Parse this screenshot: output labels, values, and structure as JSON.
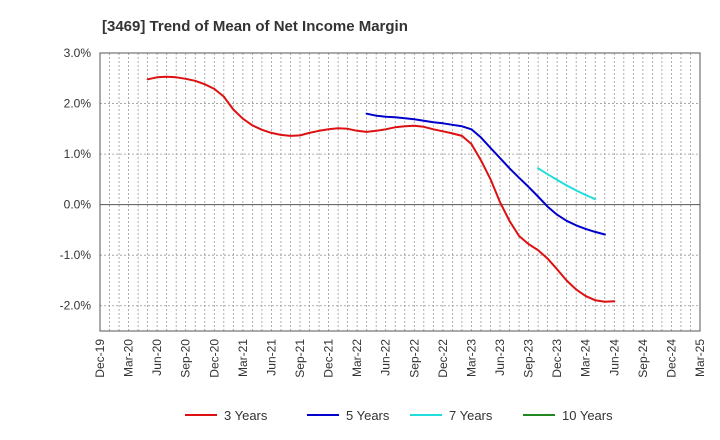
{
  "chart_data": {
    "type": "line",
    "title": "[3469]  Trend of Mean of Net Income Margin",
    "xlabel": "",
    "ylabel": "",
    "x_ticks": [
      "Dec-19",
      "Mar-20",
      "Jun-20",
      "Sep-20",
      "Dec-20",
      "Mar-21",
      "Jun-21",
      "Sep-21",
      "Dec-21",
      "Mar-22",
      "Jun-22",
      "Sep-22",
      "Dec-22",
      "Mar-23",
      "Jun-23",
      "Sep-23",
      "Dec-23",
      "Mar-24",
      "Jun-24",
      "Sep-24",
      "Dec-24",
      "Mar-25"
    ],
    "y_ticks": [
      "3.0%",
      "2.0%",
      "1.0%",
      "0.0%",
      "-1.0%",
      "-2.0%"
    ],
    "y_tick_values": [
      3.0,
      2.0,
      1.0,
      0.0,
      -1.0,
      -2.0
    ],
    "ylim": [
      -2.5,
      3.0
    ],
    "xlim": [
      0,
      21
    ],
    "grid": true,
    "legend_position": "bottom",
    "series": [
      {
        "name": "3 Years",
        "color": "#dd1111",
        "points": [
          [
            1.67,
            2.48
          ],
          [
            2.0,
            2.52
          ],
          [
            2.33,
            2.53
          ],
          [
            2.67,
            2.52
          ],
          [
            3.0,
            2.49
          ],
          [
            3.33,
            2.45
          ],
          [
            3.67,
            2.38
          ],
          [
            4.0,
            2.29
          ],
          [
            4.33,
            2.14
          ],
          [
            4.67,
            1.88
          ],
          [
            5.0,
            1.7
          ],
          [
            5.33,
            1.57
          ],
          [
            5.67,
            1.48
          ],
          [
            6.0,
            1.42
          ],
          [
            6.33,
            1.38
          ],
          [
            6.67,
            1.36
          ],
          [
            7.0,
            1.37
          ],
          [
            7.33,
            1.42
          ],
          [
            7.67,
            1.46
          ],
          [
            8.0,
            1.49
          ],
          [
            8.33,
            1.51
          ],
          [
            8.67,
            1.5
          ],
          [
            9.0,
            1.46
          ],
          [
            9.33,
            1.44
          ],
          [
            9.67,
            1.46
          ],
          [
            10.0,
            1.49
          ],
          [
            10.33,
            1.53
          ],
          [
            10.67,
            1.55
          ],
          [
            11.0,
            1.56
          ],
          [
            11.33,
            1.54
          ],
          [
            11.67,
            1.49
          ],
          [
            12.0,
            1.45
          ],
          [
            12.33,
            1.41
          ],
          [
            12.67,
            1.36
          ],
          [
            13.0,
            1.2
          ],
          [
            13.33,
            0.88
          ],
          [
            13.67,
            0.5
          ],
          [
            14.0,
            0.05
          ],
          [
            14.33,
            -0.32
          ],
          [
            14.67,
            -0.62
          ],
          [
            15.0,
            -0.78
          ],
          [
            15.33,
            -0.9
          ],
          [
            15.67,
            -1.07
          ],
          [
            16.0,
            -1.28
          ],
          [
            16.33,
            -1.5
          ],
          [
            16.67,
            -1.68
          ],
          [
            17.0,
            -1.81
          ],
          [
            17.33,
            -1.89
          ],
          [
            17.67,
            -1.92
          ],
          [
            18.0,
            -1.91
          ]
        ]
      },
      {
        "name": "5 Years",
        "color": "#0000cc",
        "points": [
          [
            9.33,
            1.8
          ],
          [
            9.67,
            1.76
          ],
          [
            10.0,
            1.74
          ],
          [
            10.33,
            1.73
          ],
          [
            10.67,
            1.71
          ],
          [
            11.0,
            1.69
          ],
          [
            11.33,
            1.66
          ],
          [
            11.67,
            1.63
          ],
          [
            12.0,
            1.61
          ],
          [
            12.33,
            1.58
          ],
          [
            12.67,
            1.55
          ],
          [
            13.0,
            1.49
          ],
          [
            13.33,
            1.33
          ],
          [
            13.67,
            1.12
          ],
          [
            14.0,
            0.92
          ],
          [
            14.33,
            0.72
          ],
          [
            14.67,
            0.53
          ],
          [
            15.0,
            0.35
          ],
          [
            15.33,
            0.16
          ],
          [
            15.67,
            -0.04
          ],
          [
            16.0,
            -0.2
          ],
          [
            16.33,
            -0.32
          ],
          [
            16.67,
            -0.41
          ],
          [
            17.0,
            -0.48
          ],
          [
            17.33,
            -0.54
          ],
          [
            17.67,
            -0.59
          ]
        ]
      },
      {
        "name": "7 Years",
        "color": "#22dddd",
        "points": [
          [
            15.33,
            0.72
          ],
          [
            15.67,
            0.6
          ],
          [
            16.0,
            0.49
          ],
          [
            16.33,
            0.38
          ],
          [
            16.67,
            0.28
          ],
          [
            17.0,
            0.19
          ],
          [
            17.33,
            0.11
          ]
        ]
      },
      {
        "name": "10 Years",
        "color": "#228822",
        "points": []
      }
    ]
  }
}
